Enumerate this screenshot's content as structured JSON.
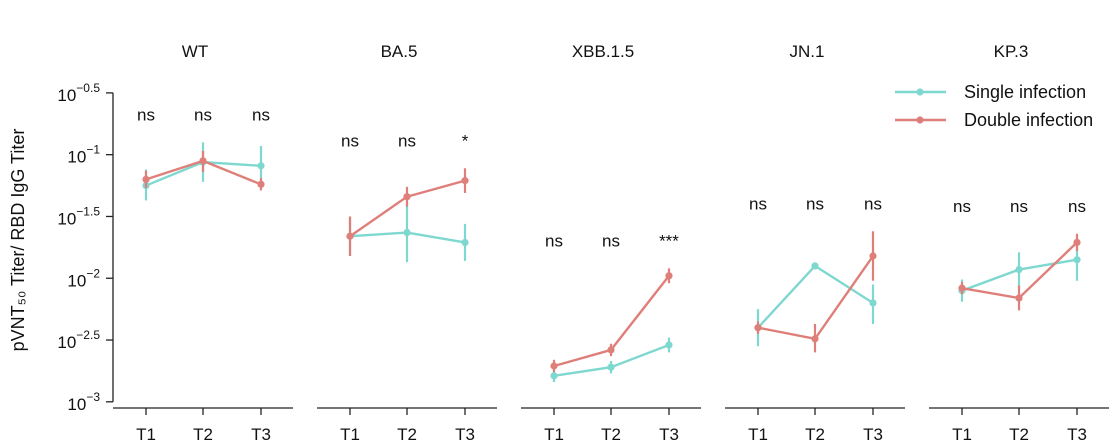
{
  "chart_data": {
    "type": "line",
    "ylabel": "pVNT₅₀ Titer/ RBD IgG Titer",
    "yscale": "log10",
    "ylim_log10": [
      -3.05,
      -0.25
    ],
    "yticks": [
      {
        "value": -0.5,
        "base": "10",
        "exp": "−0.5"
      },
      {
        "value": -1.0,
        "base": "10",
        "exp": "−1"
      },
      {
        "value": -1.5,
        "base": "10",
        "exp": "−1.5"
      },
      {
        "value": -2.0,
        "base": "10",
        "exp": "−2"
      },
      {
        "value": -2.5,
        "base": "10",
        "exp": "−2.5"
      },
      {
        "value": -3.0,
        "base": "10",
        "exp": "−3"
      }
    ],
    "categories": [
      "T1",
      "T2",
      "T3"
    ],
    "legend": {
      "position": "top-right",
      "entries": [
        {
          "name": "Single infection",
          "color": "#7fd8d0"
        },
        {
          "name": "Double infection",
          "color": "#df7f7a"
        }
      ]
    },
    "panels": [
      {
        "title": "WT",
        "significance": [
          "ns",
          "ns",
          "ns"
        ],
        "series": [
          {
            "name": "Single infection",
            "values_log10": [
              -1.25,
              -1.06,
              -1.09
            ],
            "err_lo": [
              -1.37,
              -1.22,
              -1.27
            ],
            "err_hi": [
              -1.12,
              -0.9,
              -0.93
            ]
          },
          {
            "name": "Double infection",
            "values_log10": [
              -1.2,
              -1.05,
              -1.24
            ],
            "err_lo": [
              -1.27,
              -1.14,
              -1.29
            ],
            "err_hi": [
              -1.13,
              -0.97,
              -1.19
            ]
          }
        ]
      },
      {
        "title": "BA.5",
        "significance": [
          "ns",
          "ns",
          "*"
        ],
        "series": [
          {
            "name": "Single infection",
            "values_log10": [
              -1.66,
              -1.63,
              -1.71
            ],
            "err_lo": [
              -1.82,
              -1.87,
              -1.86
            ],
            "err_hi": [
              -1.5,
              -1.39,
              -1.56
            ]
          },
          {
            "name": "Double infection",
            "values_log10": [
              -1.66,
              -1.34,
              -1.21
            ],
            "err_lo": [
              -1.82,
              -1.42,
              -1.31
            ],
            "err_hi": [
              -1.5,
              -1.26,
              -1.11
            ]
          }
        ]
      },
      {
        "title": "XBB.1.5",
        "significance": [
          "ns",
          "ns",
          "***"
        ],
        "series": [
          {
            "name": "Single infection",
            "values_log10": [
              -2.79,
              -2.72,
              -2.54
            ],
            "err_lo": [
              -2.84,
              -2.77,
              -2.6
            ],
            "err_hi": [
              -2.74,
              -2.67,
              -2.48
            ]
          },
          {
            "name": "Double infection",
            "values_log10": [
              -2.71,
              -2.58,
              -1.98
            ],
            "err_lo": [
              -2.76,
              -2.63,
              -2.04
            ],
            "err_hi": [
              -2.66,
              -2.53,
              -1.92
            ]
          }
        ]
      },
      {
        "title": "JN.1",
        "significance": [
          "ns",
          "ns",
          "ns"
        ],
        "series": [
          {
            "name": "Single infection",
            "values_log10": [
              -2.4,
              -1.9,
              -2.2
            ],
            "err_lo": [
              -2.55,
              -1.92,
              -2.37
            ],
            "err_hi": [
              -2.25,
              -1.88,
              -2.05
            ]
          },
          {
            "name": "Double infection",
            "values_log10": [
              -2.4,
              -2.49,
              -1.82
            ],
            "err_lo": [
              -2.45,
              -2.6,
              -2.02
            ],
            "err_hi": [
              -2.35,
              -2.37,
              -1.62
            ]
          }
        ]
      },
      {
        "title": "KP.3",
        "significance": [
          "ns",
          "ns",
          "ns"
        ],
        "series": [
          {
            "name": "Single infection",
            "values_log10": [
              -2.1,
              -1.93,
              -1.85
            ],
            "err_lo": [
              -2.19,
              -2.07,
              -2.02
            ],
            "err_hi": [
              -2.01,
              -1.79,
              -1.68
            ]
          },
          {
            "name": "Double infection",
            "values_log10": [
              -2.08,
              -2.16,
              -1.71
            ],
            "err_lo": [
              -2.13,
              -2.26,
              -1.78
            ],
            "err_hi": [
              -2.03,
              -2.06,
              -1.64
            ]
          }
        ]
      }
    ]
  }
}
